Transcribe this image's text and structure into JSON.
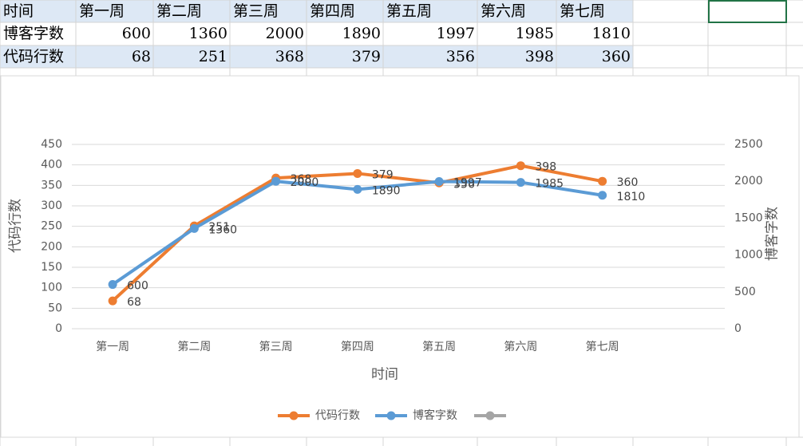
{
  "chart_data": {
    "type": "line",
    "x_label": "时间",
    "y_label": "代码行数",
    "y2_label": "博客字数",
    "categories": [
      "第一周",
      "第二周",
      "第三周",
      "第四周",
      "第五周",
      "第六周",
      "第七周",
      null
    ],
    "series": [
      {
        "name": "代码行数",
        "color": "#ed7d31",
        "values": [
          68,
          251,
          368,
          379,
          356,
          398,
          360,
          null
        ]
      },
      {
        "name": "博客字数",
        "color": "#5b9bd5",
        "axis": "y2",
        "values": [
          600,
          1360,
          2000,
          1890,
          1997,
          1985,
          1810,
          null
        ]
      },
      {
        "color": "#a5a5a5",
        "values": [
          null,
          null,
          null,
          null,
          null,
          null,
          null,
          null
        ]
      }
    ],
    "ylim": [
      0,
      450
    ],
    "yticks": [
      0,
      50,
      100,
      150,
      200,
      250,
      300,
      350,
      400,
      450
    ],
    "y2lim": [
      0,
      2500
    ],
    "y2ticks": [
      0,
      500,
      1000,
      1500,
      2000,
      2500
    ],
    "grid": true,
    "legend": "bottom",
    "data_labels": true,
    "table_series": [
      1,
      0
    ]
  }
}
